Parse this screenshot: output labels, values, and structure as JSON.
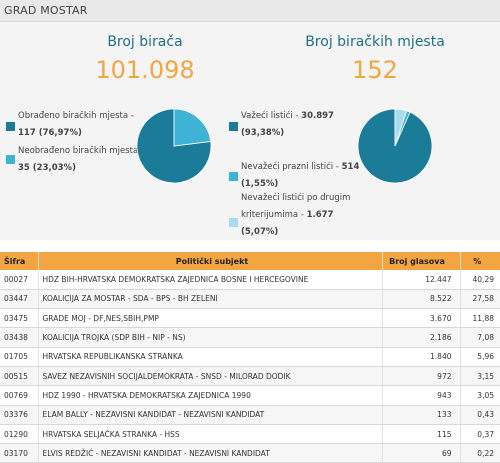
{
  "header": {
    "title": "GRAD MOSTAR"
  },
  "stats": {
    "left": {
      "label": "Broj birača",
      "value": "101.098"
    },
    "right": {
      "label": "Broj biračkih mjesta",
      "value": "152"
    }
  },
  "colors": {
    "accent": "#f2a541",
    "primary": "#1b7c99",
    "light": "#3eb3d6",
    "pale": "#a8dcec",
    "label": "#1f6f8b"
  },
  "legend_left": [
    {
      "label": "Obrađeno biračkih mjesta -",
      "value": "117 (76,97%)",
      "color": "#1b7c99"
    },
    {
      "label": "Neobrađeno biračkih mjesta -",
      "value": "35 (23,03%)",
      "color": "#3eb3d6"
    }
  ],
  "legend_right": [
    {
      "label": "Važeći listići -",
      "value": "30.897",
      "pct": "(93,38%)",
      "color": "#1b7c99"
    },
    {
      "label": "Nevažeći prazni listići -",
      "value": "514",
      "pct": "(1,55%)",
      "color": "#3eb3d6"
    },
    {
      "label": "Nevažeći listići po drugim",
      "label2": "kriterijumima -",
      "value": "1.677",
      "pct": "(5,07%)",
      "color": "#a8dcec"
    }
  ],
  "pies": {
    "left": [
      {
        "fraction": 0.7697,
        "color": "#1b7c99"
      },
      {
        "fraction": 0.2303,
        "color": "#3eb3d6"
      }
    ],
    "right": [
      {
        "fraction": 0.9338,
        "color": "#1b7c99"
      },
      {
        "fraction": 0.0155,
        "color": "#3eb3d6"
      },
      {
        "fraction": 0.0507,
        "color": "#a8dcec"
      }
    ]
  },
  "table": {
    "headers": {
      "code": "Šifra",
      "subject": "Politički subjekt",
      "votes": "Broj glasova",
      "pct": "%"
    },
    "rows": [
      {
        "code": "00027",
        "subject": "HDZ BIH-HRVATSKA DEMOKRATSKA ZAJEDNICA BOSNE I HERCEGOVINE",
        "votes": "12.447",
        "pct": "40,29"
      },
      {
        "code": "03447",
        "subject": "KOALICIJA ZA MOSTAR - SDA - BPS - BH ZELENI",
        "votes": "8.522",
        "pct": "27,58"
      },
      {
        "code": "03475",
        "subject": "GRADE MOJ - DF,NES,SBIH,PMP",
        "votes": "3.670",
        "pct": "11,88"
      },
      {
        "code": "03438",
        "subject": "KOALICIJA TROJKA (SDP BIH - NIP - NS)",
        "votes": "2.186",
        "pct": "7,08"
      },
      {
        "code": "01705",
        "subject": "HRVATSKA REPUBLIKANSKA STRANKA",
        "votes": "1.840",
        "pct": "5,96"
      },
      {
        "code": "00515",
        "subject": "SAVEZ NEZAVISNIH SOCIJALDEMOKRATA - SNSD - MILORAD DODIK",
        "votes": "972",
        "pct": "3,15"
      },
      {
        "code": "00769",
        "subject": "HDZ 1990 - HRVATSKA DEMOKRATSKA ZAJEDNICA 1990",
        "votes": "943",
        "pct": "3,05"
      },
      {
        "code": "03376",
        "subject": "ELAM BALLY - NEZAVISNI KANDIDAT - NEZAVISNI KANDIDAT",
        "votes": "133",
        "pct": "0,43"
      },
      {
        "code": "01290",
        "subject": "HRVATSKA SELJAČKA STRANKA - HSS",
        "votes": "115",
        "pct": "0,37"
      },
      {
        "code": "03170",
        "subject": "ELVIS REDŽIĆ - NEZAVISNI KANDIDAT - NEZAVISNI KANDIDAT",
        "votes": "69",
        "pct": "0,22"
      }
    ]
  }
}
